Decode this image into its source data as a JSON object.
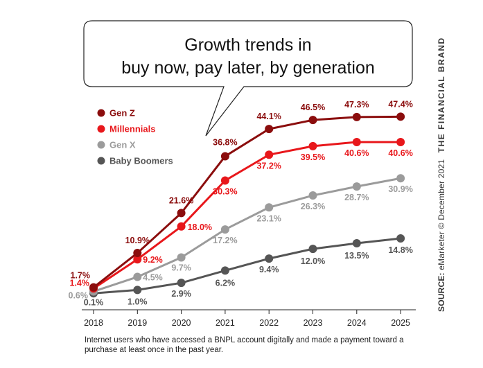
{
  "chart_data": {
    "type": "line",
    "title": "Growth trends in buy now, pay later, by generation",
    "title_lines": [
      "Growth trends in",
      "buy now, pay later, by generation"
    ],
    "x": [
      "2018",
      "2019",
      "2020",
      "2021",
      "2022",
      "2023",
      "2024",
      "2025"
    ],
    "ylim": [
      0,
      50
    ],
    "grid": false,
    "legend_position": "top-left",
    "series": [
      {
        "name": "Gen Z",
        "color": "#8b0d0d",
        "values": [
          1.7,
          10.9,
          21.6,
          36.8,
          44.1,
          46.5,
          47.3,
          47.4
        ],
        "labels": [
          "1.7%",
          "10.9%",
          "21.6%",
          "36.8%",
          "44.1%",
          "46.5%",
          "47.3%",
          "47.4%"
        ]
      },
      {
        "name": "Millennials",
        "color": "#e8171b",
        "values": [
          1.4,
          9.2,
          18.0,
          30.3,
          37.2,
          39.5,
          40.6,
          40.6
        ],
        "labels": [
          "1.4%",
          "9.2%",
          "18.0%",
          "30.3%",
          "37.2%",
          "39.5%",
          "40.6%",
          "40.6%"
        ]
      },
      {
        "name": "Gen X",
        "color": "#9b9b9b",
        "values": [
          0.6,
          4.5,
          9.7,
          17.2,
          23.1,
          26.3,
          28.7,
          30.9
        ],
        "labels": [
          "0.6%",
          "4.5%",
          "9.7%",
          "17.2%",
          "23.1%",
          "26.3%",
          "28.7%",
          "30.9%"
        ]
      },
      {
        "name": "Baby Boomers",
        "color": "#555555",
        "values": [
          0.1,
          1.0,
          2.9,
          6.2,
          9.4,
          12.0,
          13.5,
          14.8
        ],
        "labels": [
          "0.1%",
          "1.0%",
          "2.9%",
          "6.2%",
          "9.4%",
          "12.0%",
          "13.5%",
          "14.8%"
        ]
      }
    ]
  },
  "footnote": "Internet users who have accessed a BNPL account digitally and made a payment toward a purchase at least once in the past year.",
  "source": {
    "label": "SOURCE:",
    "text": "eMarketer © December 2021",
    "brand": "THE FINANCIAL BRAND"
  }
}
